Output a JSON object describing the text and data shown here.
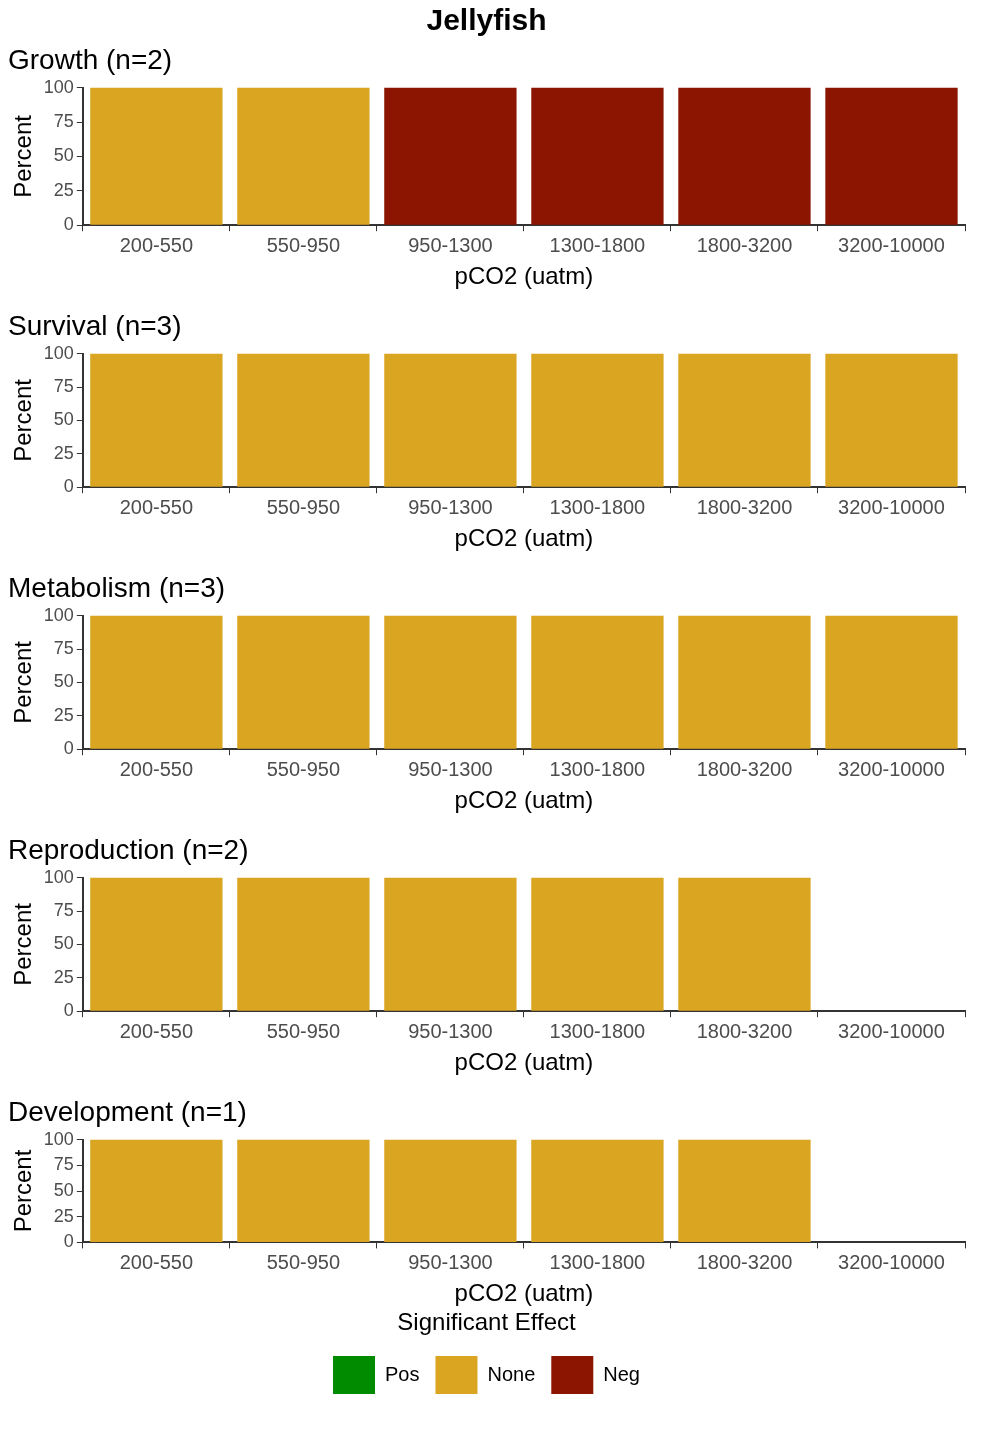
{
  "chart_data": [
    {
      "type": "bar",
      "title": "Jellyfish",
      "subtitle": "Growth (n=2)",
      "xlabel": "pCO2 (uatm)",
      "ylabel": "Percent",
      "categories": [
        "200-550",
        "550-950",
        "950-1300",
        "1300-1800",
        "1800-3200",
        "3200-10000"
      ],
      "stacked": true,
      "ylim": [
        0,
        100
      ],
      "yticks": [
        0,
        25,
        50,
        75,
        100
      ],
      "grid": false,
      "legend": false,
      "series": [
        {
          "color": "#daa520",
          "values": [
            100,
            100,
            null,
            null,
            null,
            null
          ]
        },
        {
          "color": "#8b1500",
          "values": [
            null,
            null,
            100,
            100,
            100,
            100
          ]
        }
      ]
    },
    {
      "type": "bar",
      "title": "Survival (n=3)",
      "xlabel": "pCO2 (uatm)",
      "ylabel": "Percent",
      "categories": [
        "200-550",
        "550-950",
        "950-1300",
        "1300-1800",
        "1800-3200",
        "3200-10000"
      ],
      "stacked": true,
      "ylim": [
        0,
        100
      ],
      "yticks": [
        0,
        25,
        50,
        75,
        100
      ],
      "grid": false,
      "legend": false,
      "series": [
        {
          "color": "#daa520",
          "values": [
            100,
            100,
            100,
            100,
            100,
            100
          ]
        }
      ]
    },
    {
      "type": "bar",
      "title": "Metabolism (n=3)",
      "xlabel": "pCO2 (uatm)",
      "ylabel": "Percent",
      "categories": [
        "200-550",
        "550-950",
        "950-1300",
        "1300-1800",
        "1800-3200",
        "3200-10000"
      ],
      "stacked": true,
      "ylim": [
        0,
        100
      ],
      "yticks": [
        0,
        25,
        50,
        75,
        100
      ],
      "grid": false,
      "legend": false,
      "series": [
        {
          "color": "#daa520",
          "values": [
            100,
            100,
            100,
            100,
            100,
            100
          ]
        }
      ]
    },
    {
      "type": "bar",
      "title": "Reproduction (n=2)",
      "xlabel": "pCO2 (uatm)",
      "ylabel": "Percent",
      "categories": [
        "200-550",
        "550-950",
        "950-1300",
        "1300-1800",
        "1800-3200",
        "3200-10000"
      ],
      "stacked": true,
      "ylim": [
        0,
        100
      ],
      "yticks": [
        0,
        25,
        50,
        75,
        100
      ],
      "grid": false,
      "legend": false,
      "series": [
        {
          "color": "#daa520",
          "values": [
            100,
            100,
            100,
            100,
            100,
            null
          ]
        }
      ]
    },
    {
      "type": "bar",
      "title": "Development (n=1)",
      "xlabel": "pCO2 (uatm)",
      "ylabel": "Percent",
      "categories": [
        "200-550",
        "550-950",
        "950-1300",
        "1300-1800",
        "1800-3200",
        "3200-10000"
      ],
      "stacked": true,
      "ylim": [
        0,
        100
      ],
      "yticks": [
        0,
        25,
        50,
        75,
        100
      ],
      "grid": false,
      "legend": "bottom",
      "legend_title": "Significant Effect",
      "series": [
        {
          "name": "Pos",
          "color": "#008b00",
          "values": [
            null,
            null,
            null,
            null,
            null,
            null
          ]
        },
        {
          "name": "None",
          "color": "#daa520",
          "values": [
            100,
            100,
            100,
            100,
            100,
            null
          ]
        },
        {
          "name": "Neg",
          "color": "#8b1500",
          "values": [
            null,
            null,
            null,
            null,
            null,
            null
          ]
        }
      ]
    }
  ]
}
